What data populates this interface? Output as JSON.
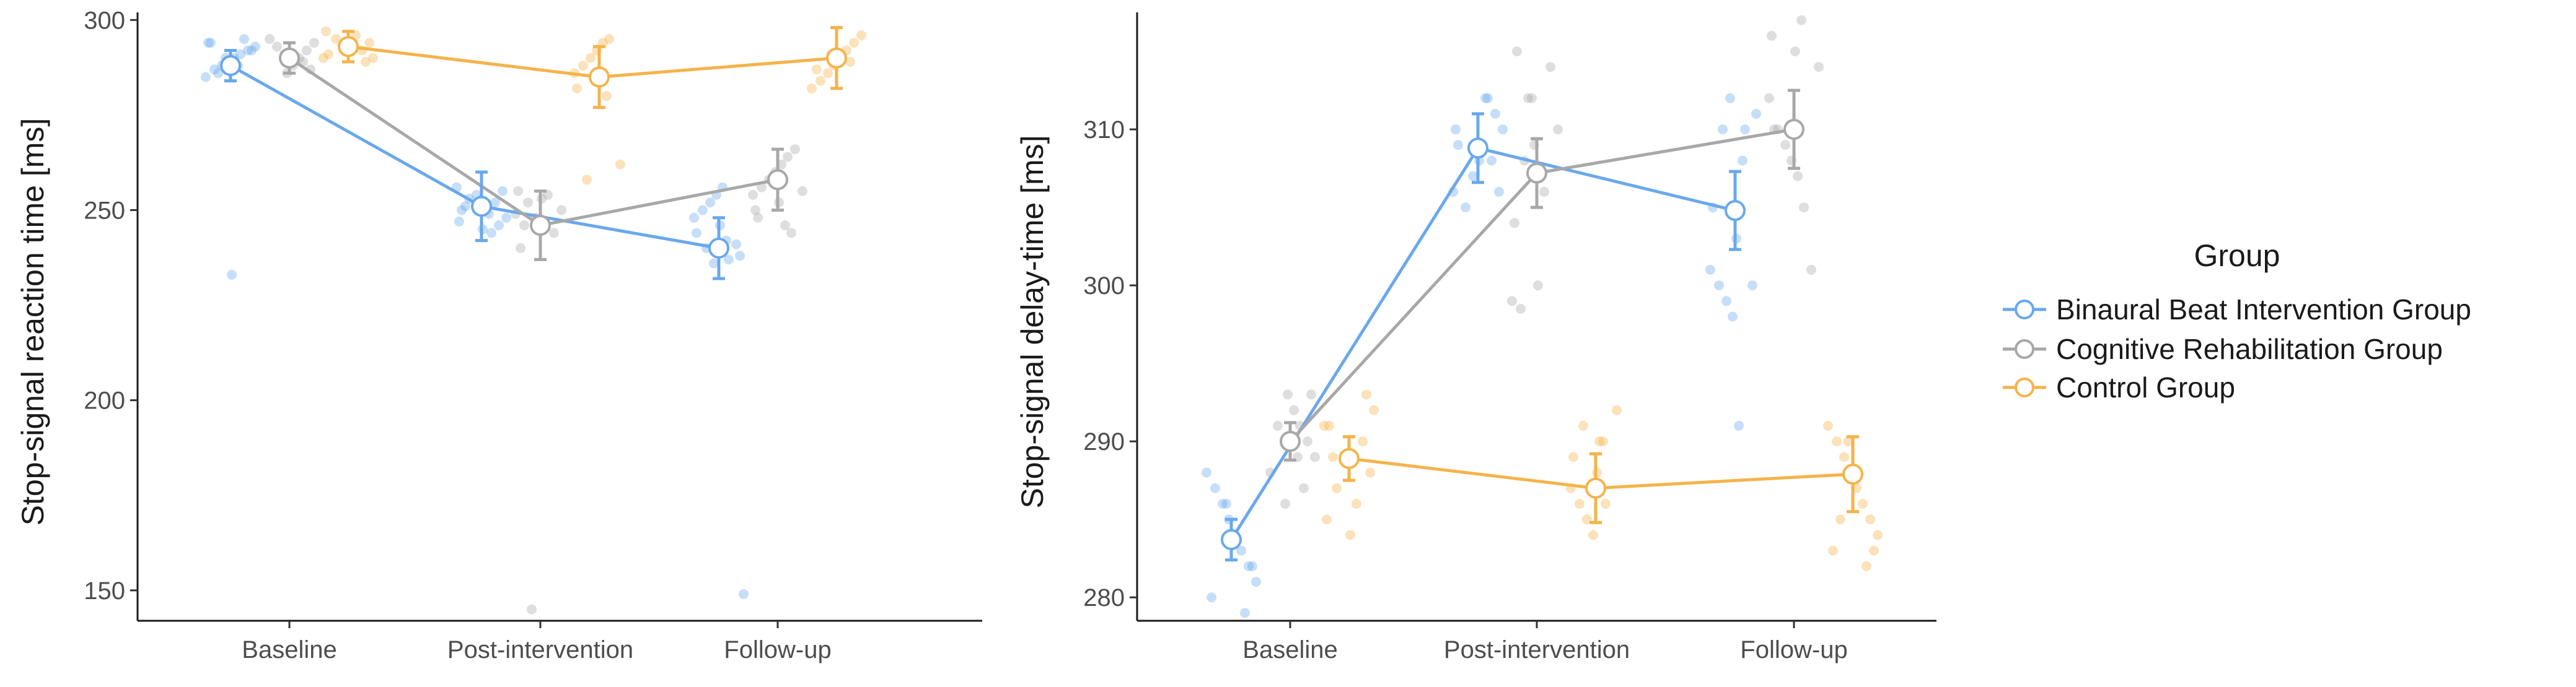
{
  "chart_data": [
    {
      "type": "line",
      "ylabel": "Stop-signal reaction time [ms]",
      "categories": [
        "Baseline",
        "Post-intervention",
        "Follow-up"
      ],
      "ylim": [
        142,
        302
      ],
      "yticks": [
        150,
        200,
        250,
        300
      ],
      "grid": false,
      "series": [
        {
          "name": "Binaural Beat Intervention Group",
          "color": "#6aa8ec",
          "mean": [
            288,
            251,
            240
          ],
          "error": [
            4,
            9,
            8
          ],
          "points": [
            [
              285,
              287,
              288,
              289,
              290,
              291,
              292,
              293,
              294,
              295,
              290,
              292,
              286,
              288,
              294,
              233
            ],
            [
              244,
              246,
              248,
              250,
              252,
              254,
              255,
              253,
              249,
              247,
              245,
              256,
              251
            ],
            [
              236,
              238,
              240,
              242,
              244,
              246,
              248,
              250,
              252,
              254,
              256,
              237,
              241,
              149
            ]
          ]
        },
        {
          "name": "Cognitive Rehabilitation Group",
          "color": "#a8a8a8",
          "mean": [
            290,
            246,
            258
          ],
          "error": [
            4,
            9,
            8
          ],
          "points": [
            [
              286,
              288,
              290,
              292,
              294,
              295,
              289,
              291,
              287,
              293
            ],
            [
              240,
              244,
              248,
              250,
              252,
              254,
              255,
              253,
              249,
              246,
              145
            ],
            [
              246,
              250,
              252,
              254,
              256,
              258,
              260,
              262,
              264,
              266,
              255,
              248,
              244
            ]
          ]
        },
        {
          "name": "Control Group",
          "color": "#f5b34a",
          "mean": [
            293,
            285,
            290
          ],
          "error": [
            4,
            8,
            8
          ],
          "points": [
            [
              289,
              290,
              291,
              292,
              293,
              294,
              295,
              296,
              297,
              292,
              290
            ],
            [
              262,
              258,
              280,
              282,
              284,
              286,
              288,
              290,
              292,
              294,
              295
            ],
            [
              282,
              284,
              286,
              288,
              290,
              292,
              294,
              296,
              287,
              289,
              291
            ]
          ]
        }
      ]
    },
    {
      "type": "line",
      "ylabel": "Stop-signal delay-time [ms]",
      "categories": [
        "Baseline",
        "Post-intervention",
        "Follow-up"
      ],
      "ylim": [
        278.5,
        317.5
      ],
      "yticks": [
        280,
        290,
        300,
        310
      ],
      "grid": false,
      "series": [
        {
          "name": "Binaural Beat Intervention Group",
          "color": "#6aa8ec",
          "mean": [
            283.7,
            308.8,
            304.8
          ],
          "error": [
            1.3,
            2.2,
            2.5
          ],
          "points": [
            [
              288,
              287,
              286,
              285,
              284,
              283,
              282,
              281,
              280,
              279,
              286,
              282
            ],
            [
              312,
              311,
              310,
              309,
              308,
              307,
              306,
              305,
              312,
              310,
              308,
              306
            ],
            [
              312,
              311,
              310,
              308,
              305,
              303,
              301,
              300,
              299,
              298,
              291,
              310,
              300
            ]
          ]
        },
        {
          "name": "Cognitive Rehabilitation Group",
          "color": "#a8a8a8",
          "mean": [
            290,
            307.2,
            310
          ],
          "error": [
            1.2,
            2.2,
            2.5
          ],
          "points": [
            [
              293,
              292,
              291,
              290,
              289,
              288,
              287,
              286,
              293,
              291,
              289
            ],
            [
              315,
              314,
              312,
              310,
              308,
              306,
              304,
              300,
              299,
              298.5,
              312,
              309
            ],
            [
              317,
              316,
              315,
              312,
              310,
              309,
              308,
              307,
              305,
              301,
              314,
              310
            ]
          ]
        },
        {
          "name": "Control Group",
          "color": "#f5b34a",
          "mean": [
            288.9,
            287,
            287.9
          ],
          "error": [
            1.4,
            2.2,
            2.4
          ],
          "points": [
            [
              293,
              292,
              291,
              290,
              289,
              288,
              287,
              286,
              285,
              284,
              291,
              289
            ],
            [
              292,
              291,
              290,
              289,
              288,
              287,
              286,
              285,
              284,
              290,
              286
            ],
            [
              291,
              290,
              289,
              288,
              287,
              286,
              285,
              284,
              283,
              282,
              290,
              283,
              285
            ]
          ]
        }
      ]
    }
  ],
  "legend": {
    "title": "Group",
    "items": [
      {
        "label": "Binaural Beat Intervention Group",
        "color": "#6aa8ec"
      },
      {
        "label": "Cognitive Rehabilitation Group",
        "color": "#a8a8a8"
      },
      {
        "label": "Control Group",
        "color": "#f5b34a"
      }
    ]
  }
}
